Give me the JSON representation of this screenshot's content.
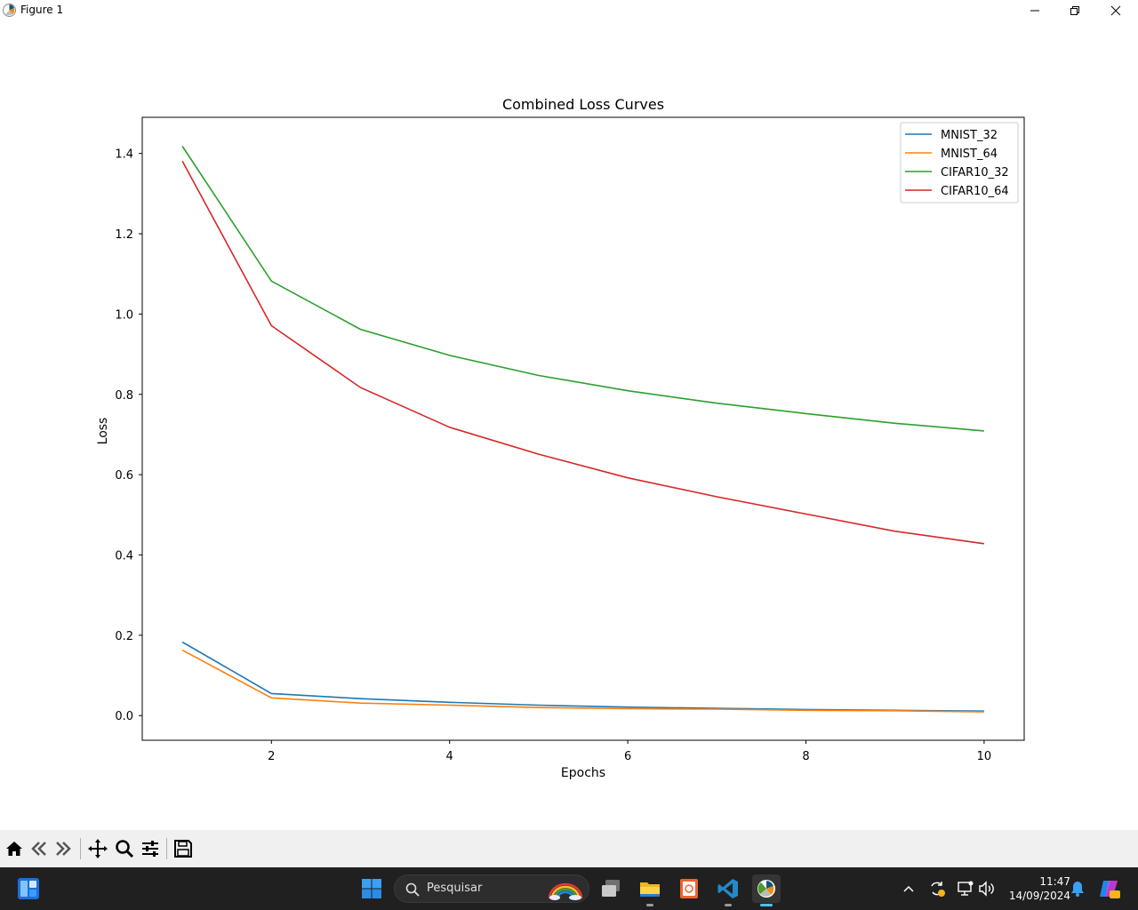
{
  "window": {
    "title": "Figure 1",
    "controls": {
      "minimize": "minimize-icon",
      "maximize": "restore-icon",
      "close": "close-icon"
    }
  },
  "chart_data": {
    "type": "line",
    "title": "Combined Loss Curves",
    "xlabel": "Epochs",
    "ylabel": "Loss",
    "xlim": [
      0.55,
      10.45
    ],
    "ylim": [
      -0.0615,
      1.49
    ],
    "xticks": [
      2,
      4,
      6,
      8,
      10
    ],
    "yticks": [
      0.0,
      0.2,
      0.4,
      0.6,
      0.8,
      1.0,
      1.2,
      1.4
    ],
    "ytick_labels": [
      "0.0",
      "0.2",
      "0.4",
      "0.6",
      "0.8",
      "1.0",
      "1.2",
      "1.4"
    ],
    "x": [
      1,
      2,
      3,
      4,
      5,
      6,
      7,
      8,
      9,
      10
    ],
    "legend_position": "top-right",
    "grid": false,
    "series": [
      {
        "name": "MNIST_32",
        "color": "#1f77b4",
        "values": [
          0.183,
          0.055,
          0.042,
          0.033,
          0.026,
          0.021,
          0.018,
          0.015,
          0.013,
          0.011
        ]
      },
      {
        "name": "MNIST_64",
        "color": "#ff7f0e",
        "values": [
          0.163,
          0.044,
          0.031,
          0.026,
          0.02,
          0.017,
          0.016,
          0.013,
          0.012,
          0.009
        ]
      },
      {
        "name": "CIFAR10_32",
        "color": "#2ca02c",
        "values": [
          1.418,
          1.082,
          0.962,
          0.897,
          0.847,
          0.809,
          0.778,
          0.752,
          0.728,
          0.709
        ]
      },
      {
        "name": "CIFAR10_64",
        "color": "#d62728",
        "values": [
          1.381,
          0.971,
          0.817,
          0.718,
          0.651,
          0.592,
          0.545,
          0.502,
          0.459,
          0.428
        ]
      }
    ]
  },
  "toolbar": {
    "buttons": [
      "home-icon",
      "back-icon",
      "forward-icon",
      "pan-icon",
      "zoom-icon",
      "configure-subplots-icon",
      "save-icon"
    ]
  },
  "taskbar": {
    "search_placeholder": "Pesquisar",
    "clock_time": "11:47",
    "clock_date": "14/09/2024",
    "apps": [
      "widgets-icon",
      "start-icon",
      "task-view-icon",
      "file-explorer-icon",
      "app-icon",
      "vscode-icon",
      "matplotlib-icon"
    ],
    "tray": [
      "chevron-up-icon",
      "sync-icon",
      "network-icon",
      "volume-icon",
      "notification-bell-icon",
      "copilot-icon"
    ]
  }
}
